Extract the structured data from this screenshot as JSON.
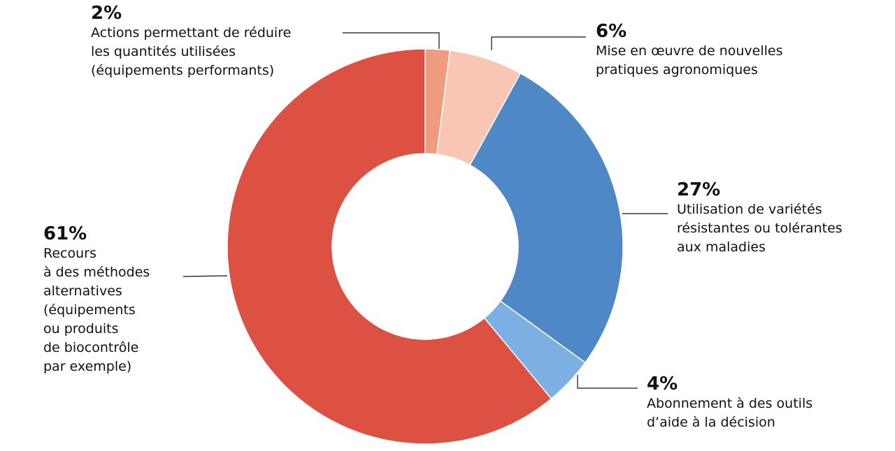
{
  "chart_data": {
    "type": "donut",
    "categories": [
      "Actions permettant de réduire\nles quantités utilisées\n(équipements performants)",
      "Mise en œuvre de nouvelles\npratiques agronomiques",
      "Utilisation de variétés\nrésistantes ou tolérantes\naux maladies",
      "Abonnement à des outils\nd’aide à la décision",
      "Recours\nà des méthodes\nalternatives\n(équipements\nou produits\nde biocontrôle\npar exemple)"
    ],
    "values": [
      2,
      6,
      27,
      4,
      61
    ],
    "value_labels": [
      "2%",
      "6%",
      "27%",
      "4%",
      "61%"
    ],
    "colors": [
      "#f09a7e",
      "#f8c6b3",
      "#4f88c6",
      "#7cb0e2",
      "#dd5142"
    ]
  }
}
